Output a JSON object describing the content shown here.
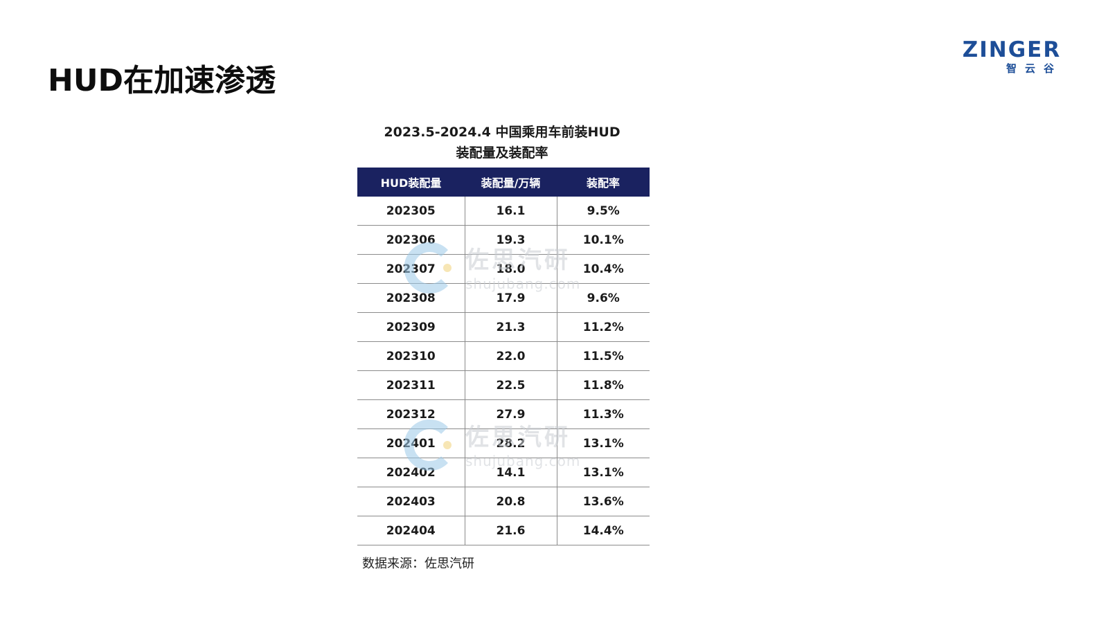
{
  "slide": {
    "title": "HUD在加速渗透"
  },
  "logo": {
    "word": "ZINGER",
    "sub": "智云谷",
    "color": "#1d4e98"
  },
  "table": {
    "title_line1": "2023.5-2024.4 中国乘用车前装HUD",
    "title_line2": "装配量及装配率",
    "headers": [
      "HUD装配量",
      "装配量/万辆",
      "装配率"
    ],
    "header_bg": "#1a2260",
    "rows": [
      [
        "202305",
        "16.1",
        "9.5%"
      ],
      [
        "202306",
        "19.3",
        "10.1%"
      ],
      [
        "202307",
        "18.0",
        "10.4%"
      ],
      [
        "202308",
        "17.9",
        "9.6%"
      ],
      [
        "202309",
        "21.3",
        "11.2%"
      ],
      [
        "202310",
        "22.0",
        "11.5%"
      ],
      [
        "202311",
        "22.5",
        "11.8%"
      ],
      [
        "202312",
        "27.9",
        "11.3%"
      ],
      [
        "202401",
        "28.2",
        "13.1%"
      ],
      [
        "202402",
        "14.1",
        "13.1%"
      ],
      [
        "202403",
        "20.8",
        "13.6%"
      ],
      [
        "202404",
        "21.6",
        "14.4%"
      ]
    ]
  },
  "source": "数据来源：佐思汽研",
  "watermark": {
    "text": "佐思汽研",
    "url": "shujubang.com",
    "icon": "shujubang-logo-icon"
  }
}
